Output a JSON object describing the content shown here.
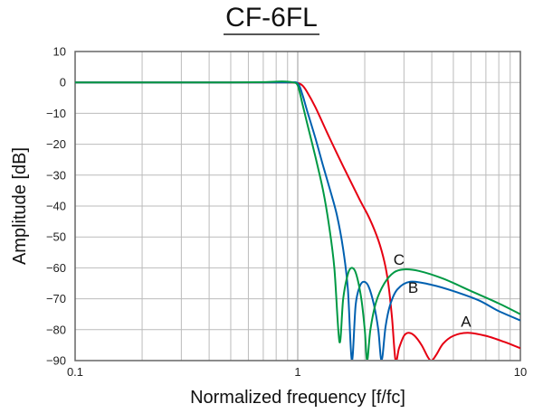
{
  "chart_data": {
    "type": "line",
    "title": "CF-6FL",
    "xlabel": "Normalized frequency [f/fc]",
    "ylabel": "Amplitude [dB]",
    "xscale": "log",
    "xlim": [
      0.1,
      10
    ],
    "ylim": [
      -90,
      10
    ],
    "xticks": [
      0.1,
      1,
      10
    ],
    "xtick_labels": [
      "0.1",
      "1",
      "10"
    ],
    "yticks": [
      10,
      0,
      -10,
      -20,
      -30,
      -40,
      -50,
      -60,
      -70,
      -80,
      -90
    ],
    "ytick_labels": [
      "10",
      "0",
      "−10",
      "−20",
      "−30",
      "−40",
      "−50",
      "−60",
      "−70",
      "−80",
      "−90"
    ],
    "grid": true,
    "series": [
      {
        "name": "A",
        "color": "#e60012",
        "points": [
          [
            0.1,
            0
          ],
          [
            0.5,
            0
          ],
          [
            0.9,
            0
          ],
          [
            1.0,
            -0.2
          ],
          [
            1.05,
            -1
          ],
          [
            1.1,
            -3
          ],
          [
            1.2,
            -8
          ],
          [
            1.35,
            -16
          ],
          [
            1.5,
            -23
          ],
          [
            1.7,
            -31
          ],
          [
            1.9,
            -38
          ],
          [
            2.1,
            -44
          ],
          [
            2.3,
            -51
          ],
          [
            2.45,
            -58
          ],
          [
            2.55,
            -65
          ],
          [
            2.65,
            -76
          ],
          [
            2.75,
            -90
          ],
          [
            2.85,
            -86
          ],
          [
            3.0,
            -82
          ],
          [
            3.15,
            -81
          ],
          [
            3.35,
            -82
          ],
          [
            3.6,
            -85
          ],
          [
            3.85,
            -89
          ],
          [
            4.0,
            -90
          ],
          [
            4.2,
            -88
          ],
          [
            4.5,
            -84.5
          ],
          [
            5.0,
            -82
          ],
          [
            5.8,
            -81
          ],
          [
            7.0,
            -82
          ],
          [
            8.5,
            -84
          ],
          [
            10,
            -86
          ]
        ]
      },
      {
        "name": "B",
        "color": "#0060b0",
        "points": [
          [
            0.1,
            0
          ],
          [
            0.5,
            0
          ],
          [
            0.9,
            0
          ],
          [
            1.0,
            -0.3
          ],
          [
            1.05,
            -4
          ],
          [
            1.1,
            -9
          ],
          [
            1.2,
            -18
          ],
          [
            1.3,
            -27
          ],
          [
            1.4,
            -35
          ],
          [
            1.5,
            -43
          ],
          [
            1.6,
            -54
          ],
          [
            1.68,
            -67
          ],
          [
            1.75,
            -90
          ],
          [
            1.82,
            -72
          ],
          [
            1.9,
            -66
          ],
          [
            1.98,
            -64.5
          ],
          [
            2.08,
            -66
          ],
          [
            2.2,
            -72
          ],
          [
            2.3,
            -80
          ],
          [
            2.38,
            -90
          ],
          [
            2.48,
            -79
          ],
          [
            2.6,
            -72
          ],
          [
            2.8,
            -67
          ],
          [
            3.2,
            -64.5
          ],
          [
            4.0,
            -65.5
          ],
          [
            5.0,
            -67.5
          ],
          [
            6.5,
            -70.5
          ],
          [
            8.0,
            -74
          ],
          [
            10,
            -77
          ]
        ]
      },
      {
        "name": "C",
        "color": "#009944",
        "points": [
          [
            0.1,
            0
          ],
          [
            0.3,
            0
          ],
          [
            0.5,
            0
          ],
          [
            0.7,
            0.1
          ],
          [
            0.85,
            0.3
          ],
          [
            0.95,
            0
          ],
          [
            1.0,
            -1
          ],
          [
            1.05,
            -7
          ],
          [
            1.1,
            -13
          ],
          [
            1.2,
            -24
          ],
          [
            1.3,
            -35
          ],
          [
            1.38,
            -46
          ],
          [
            1.46,
            -60
          ],
          [
            1.54,
            -84
          ],
          [
            1.6,
            -70
          ],
          [
            1.68,
            -62
          ],
          [
            1.75,
            -60
          ],
          [
            1.83,
            -62
          ],
          [
            1.93,
            -70
          ],
          [
            2.0,
            -80
          ],
          [
            2.05,
            -90
          ],
          [
            2.12,
            -80
          ],
          [
            2.25,
            -71
          ],
          [
            2.45,
            -65
          ],
          [
            2.7,
            -61.5
          ],
          [
            3.0,
            -60.5
          ],
          [
            3.5,
            -61
          ],
          [
            4.5,
            -63.5
          ],
          [
            6.0,
            -67.5
          ],
          [
            8.0,
            -71.5
          ],
          [
            10,
            -75
          ]
        ]
      }
    ],
    "annotations": [
      {
        "text": "A",
        "x": 5.7,
        "y": -79
      },
      {
        "text": "B",
        "x": 3.3,
        "y": -68
      },
      {
        "text": "C",
        "x": 2.85,
        "y": -59
      }
    ]
  }
}
